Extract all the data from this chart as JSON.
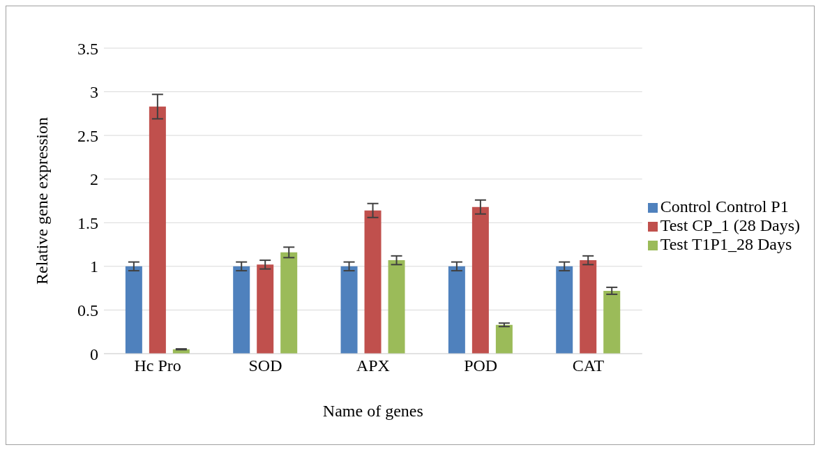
{
  "chart_data": {
    "type": "bar",
    "xlabel": "Name of genes",
    "ylabel": "Relative  gene expression",
    "categories": [
      "Hc Pro",
      "SOD",
      "APX",
      "POD",
      "CAT"
    ],
    "series": [
      {
        "name": "Control Control P1",
        "color": "#4f81bd",
        "values": [
          1,
          1,
          1,
          1,
          1
        ],
        "errors": [
          0.05,
          0.05,
          0.05,
          0.05,
          0.05
        ]
      },
      {
        "name": "Test CP_1 (28 Days)",
        "color": "#c0504d",
        "values": [
          2.83,
          1.02,
          1.64,
          1.68,
          1.07
        ],
        "errors": [
          0.14,
          0.05,
          0.08,
          0.08,
          0.05
        ]
      },
      {
        "name": "Test T1P1_28 Days",
        "color": "#9bbb59",
        "values": [
          0.05,
          1.16,
          1.07,
          0.33,
          0.72
        ],
        "errors": [
          0.005,
          0.06,
          0.05,
          0.02,
          0.04
        ]
      }
    ],
    "ylim": [
      0,
      3.5
    ],
    "yticks": [
      0,
      0.5,
      1,
      1.5,
      2,
      2.5,
      3,
      3.5
    ],
    "grid": "y",
    "legend": "right"
  }
}
